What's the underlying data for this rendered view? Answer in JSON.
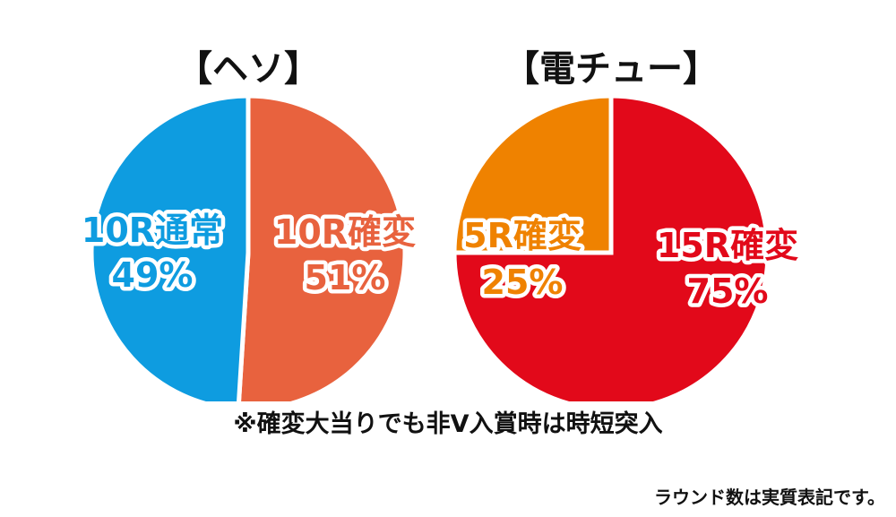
{
  "chart_data": [
    {
      "type": "pie",
      "title": "【ヘソ】",
      "slices": [
        {
          "label": "10R確変",
          "value": 51,
          "value_label": "51%",
          "color": "#E8623E",
          "label_color": "#E8623E"
        },
        {
          "label": "10R通常",
          "value": 49,
          "value_label": "49%",
          "color": "#0E9CE0",
          "label_color": "#0E9CE0"
        }
      ]
    },
    {
      "type": "pie",
      "title": "【電チュー】",
      "slices": [
        {
          "label": "15R確変",
          "value": 75,
          "value_label": "75%",
          "color": "#E2091A",
          "label_color": "#E2091A"
        },
        {
          "label": "5R確変",
          "value": 25,
          "value_label": "25%",
          "color": "#EF8200",
          "label_color": "#EF8200"
        }
      ]
    }
  ],
  "note": "※確変大当りでも非V入賞時は時短突入",
  "footnote": "ラウンド数は実質表記です。"
}
